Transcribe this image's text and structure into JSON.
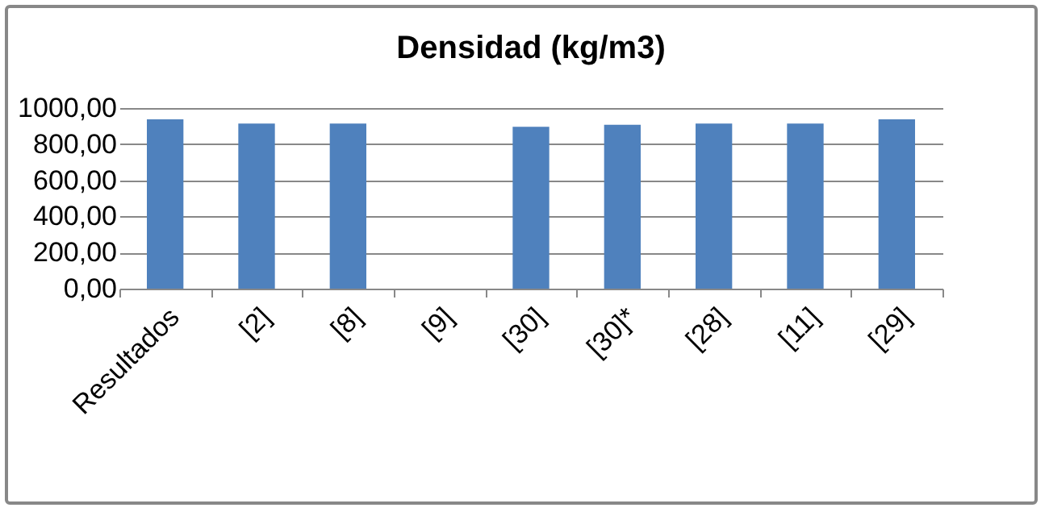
{
  "chart_data": {
    "type": "bar",
    "title": "Densidad (kg/m3)",
    "categories": [
      "Resultados",
      "[2]",
      "[8]",
      "[9]",
      "[30]",
      "[30]*",
      "[28]",
      "[11]",
      "[29]"
    ],
    "values": [
      937,
      914,
      914,
      null,
      896,
      907,
      914,
      914,
      937
    ],
    "color": "#4f81bd",
    "ylim": [
      0,
      1000
    ],
    "yticks": [
      {
        "value": 0,
        "label": "0,00"
      },
      {
        "value": 200,
        "label": "200,00"
      },
      {
        "value": 400,
        "label": "400,00"
      },
      {
        "value": 600,
        "label": "600,00"
      },
      {
        "value": 800,
        "label": "800,00"
      },
      {
        "value": 1000,
        "label": "1000,00"
      }
    ],
    "grid": "y"
  }
}
